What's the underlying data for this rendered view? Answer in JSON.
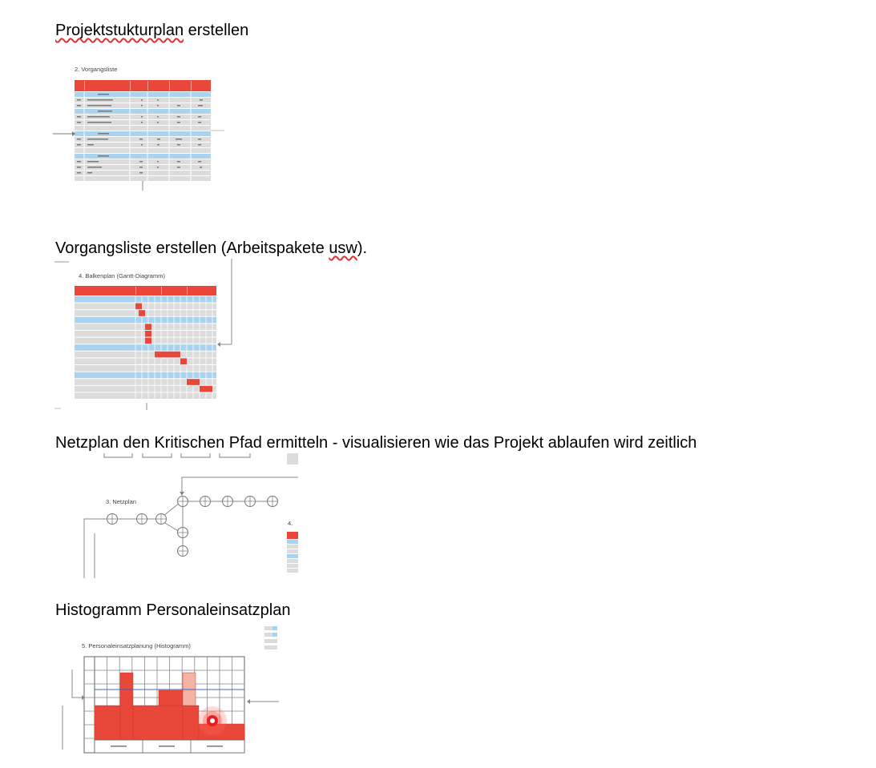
{
  "sections": [
    {
      "title_main": "Projektstukturplan",
      "title_rest": " erstellen"
    },
    {
      "title_main": "Vorgangsliste erstellen (Arbeitspakete ",
      "title_mark": "usw",
      "title_rest": ")."
    },
    {
      "title": "Netzplan den Kritischen Pfad ermitteln - visualisieren wie das Projekt ablaufen wird zeitlich"
    },
    {
      "title": "Histogramm Personaleinsatzplan"
    }
  ],
  "figures": {
    "vorgangsliste_caption": "2. Vorgangsliste",
    "gantt_caption": "4. Balkenplan (Gantt-Diagramm)",
    "netzplan_caption": "3. Netzplan",
    "histogramm_caption": "5. Personaleinsatzplanung (Histogramm)",
    "netzplan_side_label": "4."
  },
  "colors": {
    "header_red": "#e8473a",
    "group_blue": "#a9d3ee",
    "row_grey": "#dcdcdc",
    "bar_red": "#e8473a",
    "hist_light": "#f3b4a6"
  }
}
